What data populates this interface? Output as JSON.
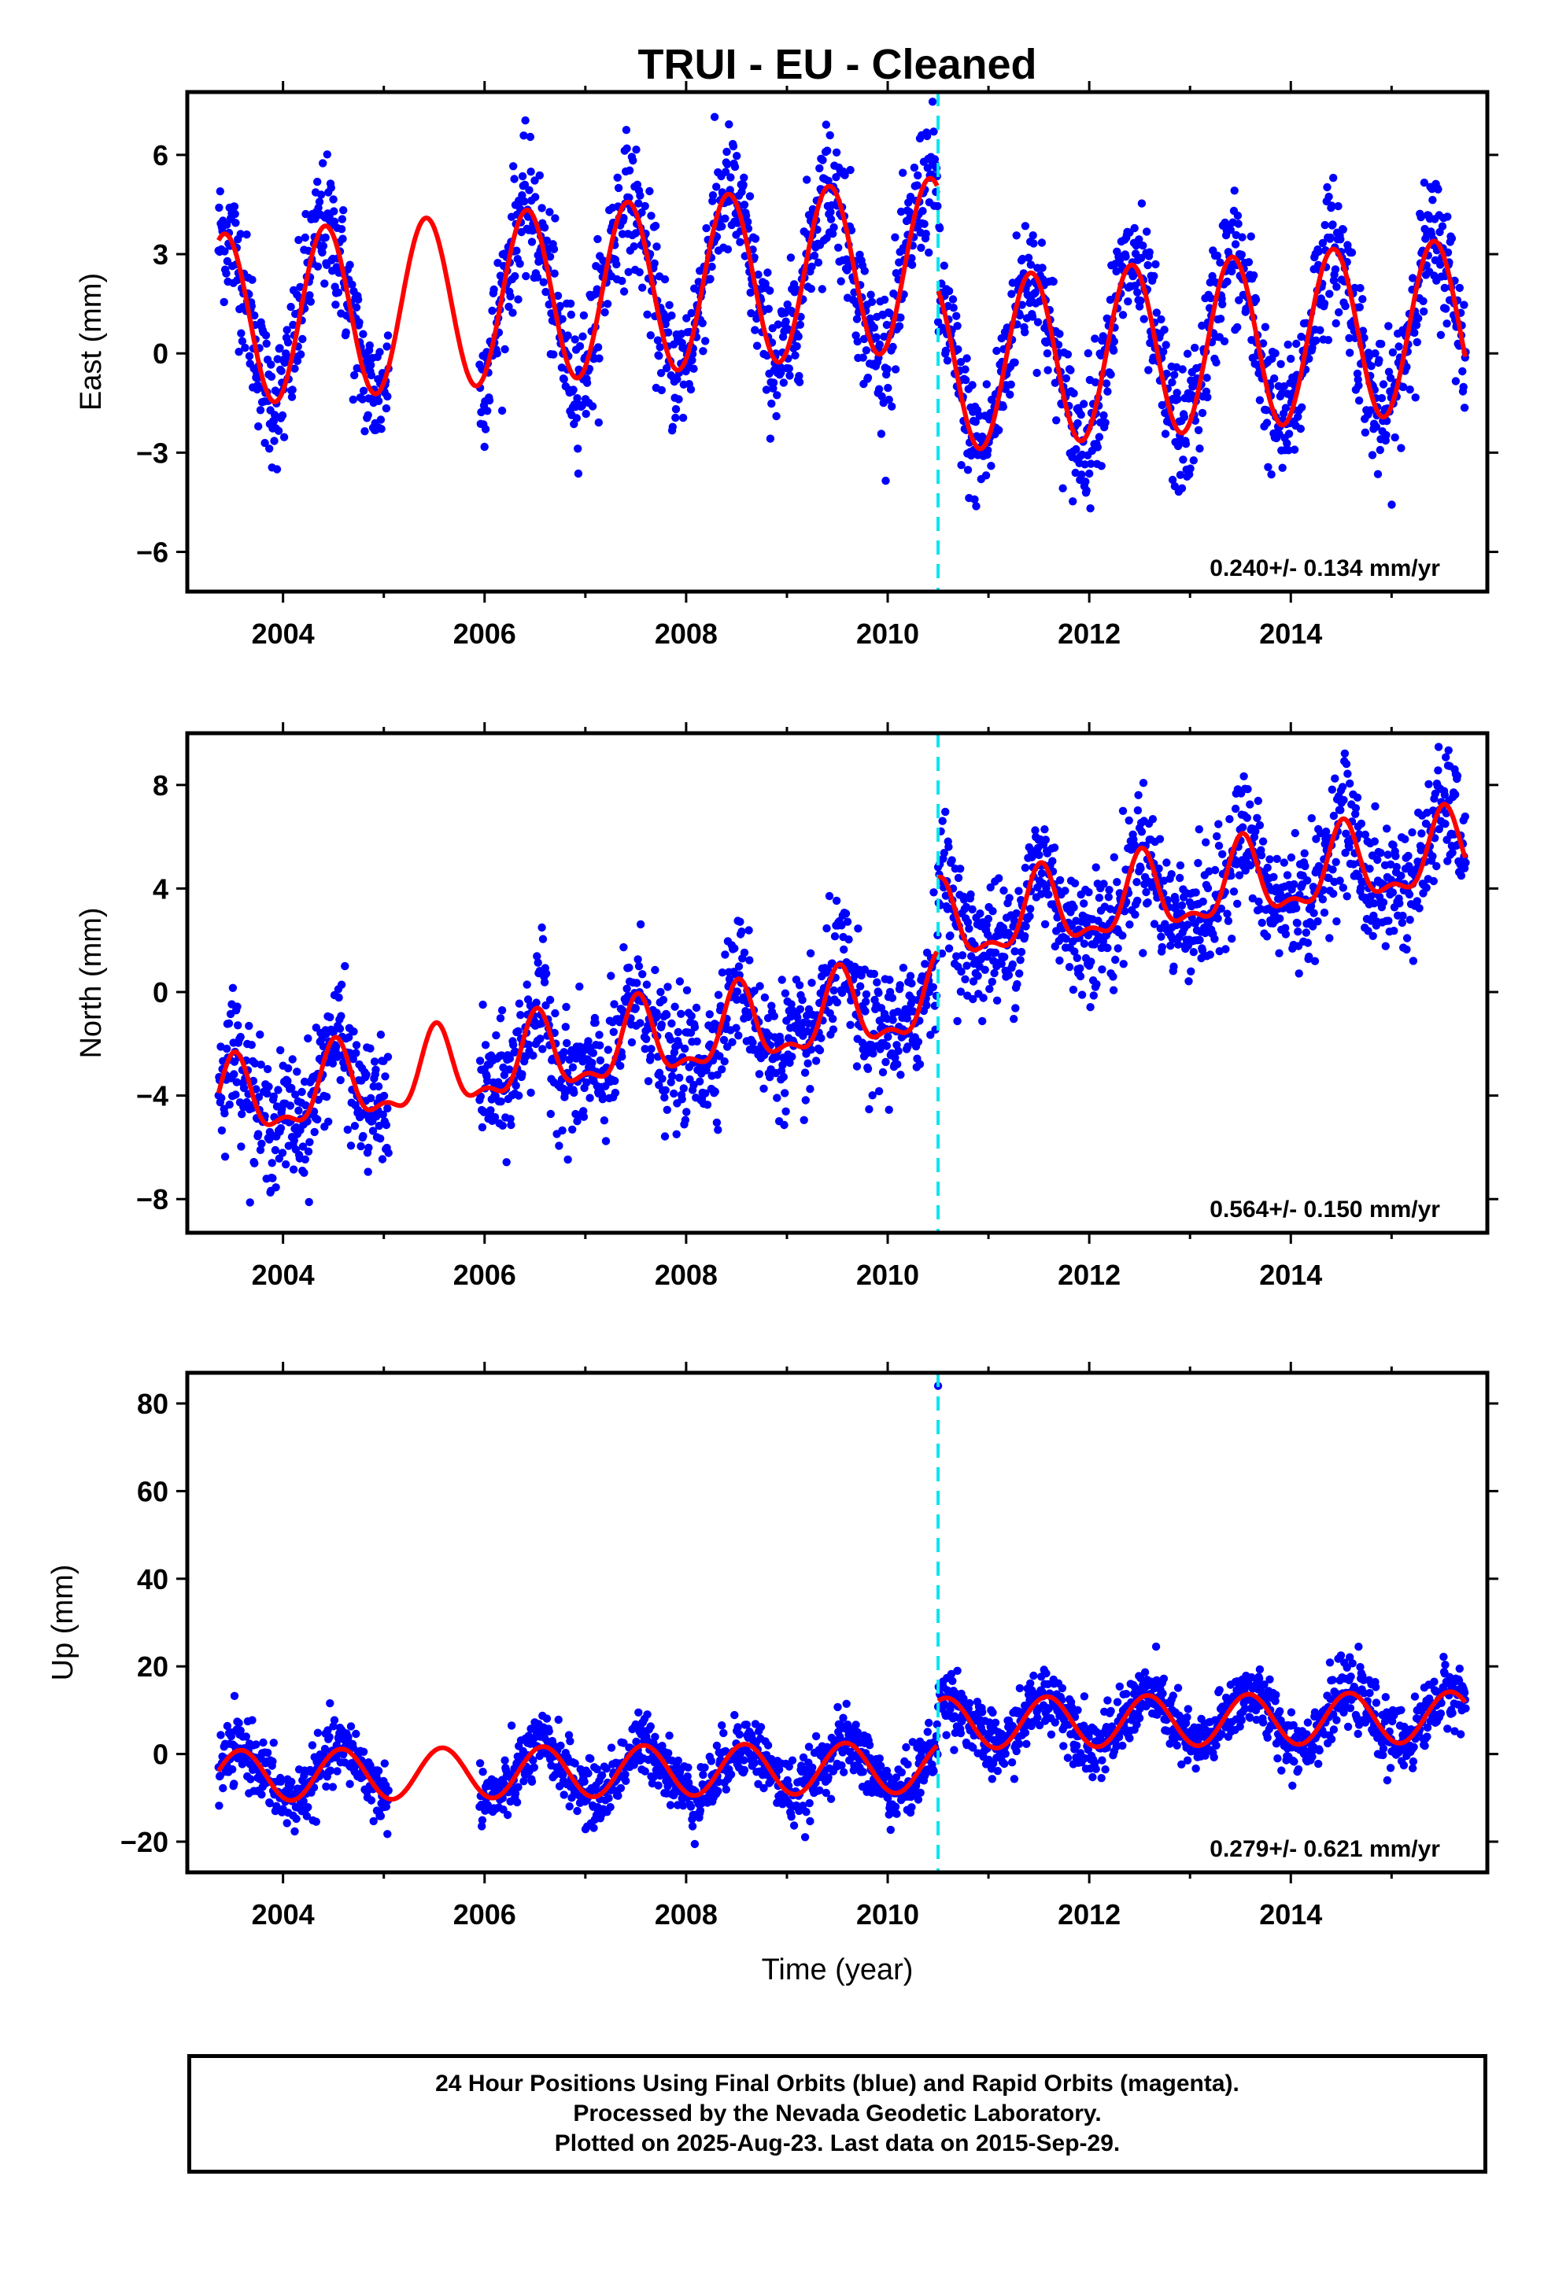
{
  "title": "TRUI  - EU - Cleaned",
  "colors": {
    "points": "#0000ff",
    "fit": "#ff0000",
    "offset_line": "#00e5ee",
    "frame": "#000000"
  },
  "footer": {
    "line1": "24 Hour Positions Using Final Orbits (blue) and Rapid Orbits (magenta).",
    "line2": "Processed by the Nevada Geodetic Laboratory.",
    "line3": "Plotted on 2025-Aug-23. Last data on 2015-Sep-29."
  },
  "chart_data": [
    {
      "type": "scatter",
      "component": "east",
      "ylabel": "East (mm)",
      "xlabel": "",
      "xlim": [
        2003.05,
        2015.95
      ],
      "ylim": [
        -7.2,
        7.9
      ],
      "xticks": [
        2004,
        2006,
        2008,
        2010,
        2012,
        2014
      ],
      "xtick_labels": [
        "2004",
        "2006",
        "2008",
        "2010",
        "2012",
        "2014"
      ],
      "yticks": [
        -6,
        -3,
        0,
        3,
        6
      ],
      "ytick_labels": [
        "−6",
        "−3",
        "0",
        "3",
        "6"
      ],
      "rate_label": "0.240+/- 0.134 mm/yr",
      "offset_epoch": 2010.5,
      "data_start": 2003.36,
      "data_end": 2015.74,
      "gap": [
        2005.05,
        2005.95
      ],
      "model": {
        "pre": {
          "base": 1.0,
          "trend": 0.24,
          "amp1": 2.6,
          "amp2": 0.0,
          "phase_peak": 0.42
        },
        "post": {
          "base": -2.1,
          "trend": 0.24,
          "amp1": 2.6,
          "amp2": 0.0,
          "phase_peak": 0.42
        },
        "t0": 2003.36,
        "scatter": 1.0
      },
      "grid": false
    },
    {
      "type": "scatter",
      "component": "north",
      "ylabel": "North (mm)",
      "xlabel": "",
      "xlim": [
        2003.05,
        2015.95
      ],
      "ylim": [
        -9.3,
        10.0
      ],
      "xticks": [
        2004,
        2006,
        2008,
        2010,
        2012,
        2014
      ],
      "xtick_labels": [
        "2004",
        "2006",
        "2008",
        "2010",
        "2012",
        "2014"
      ],
      "yticks": [
        -8,
        -4,
        0,
        4,
        8
      ],
      "ytick_labels": [
        "−8",
        "−4",
        "0",
        "4",
        "8"
      ],
      "rate_label": "0.564+/- 0.150 mm/yr",
      "offset_epoch": 2010.5,
      "data_start": 2003.36,
      "data_end": 2015.74,
      "gap": [
        2005.05,
        2005.95
      ],
      "model": {
        "pre": {
          "base": -4.4,
          "trend": 0.564,
          "amp1": 1.4,
          "amp2": 0.6,
          "phase_peak": 0.52
        },
        "post": {
          "base": -1.6,
          "trend": 0.564,
          "amp1": 1.4,
          "amp2": 0.6,
          "phase_peak": 0.52
        },
        "t0": 2003.36,
        "scatter": 1.2
      },
      "grid": false
    },
    {
      "type": "scatter",
      "component": "up",
      "ylabel": "Up (mm)",
      "xlabel": "Time (year)",
      "xlim": [
        2003.05,
        2015.95
      ],
      "ylim": [
        -27,
        87
      ],
      "xticks": [
        2004,
        2006,
        2008,
        2010,
        2012,
        2014
      ],
      "xtick_labels": [
        "2004",
        "2006",
        "2008",
        "2010",
        "2012",
        "2014"
      ],
      "yticks": [
        -20,
        0,
        20,
        40,
        60,
        80
      ],
      "ytick_labels": [
        "−20",
        "0",
        "20",
        "40",
        "60",
        "80"
      ],
      "rate_label": "0.279+/- 0.621 mm/yr",
      "offset_epoch": 2010.5,
      "data_start": 2003.36,
      "data_end": 2015.74,
      "gap": [
        2005.05,
        2005.95
      ],
      "outlier": {
        "x": 2010.5,
        "y": 84
      },
      "model": {
        "pre": {
          "base": -5.0,
          "trend": 0.279,
          "amp1": 5.8,
          "amp2": 0.0,
          "phase_peak": 0.58
        },
        "post": {
          "base": 5.0,
          "trend": 0.279,
          "amp1": 5.8,
          "amp2": 0.0,
          "phase_peak": 0.58
        },
        "t0": 2003.36,
        "scatter": 3.6
      },
      "grid": false
    }
  ]
}
